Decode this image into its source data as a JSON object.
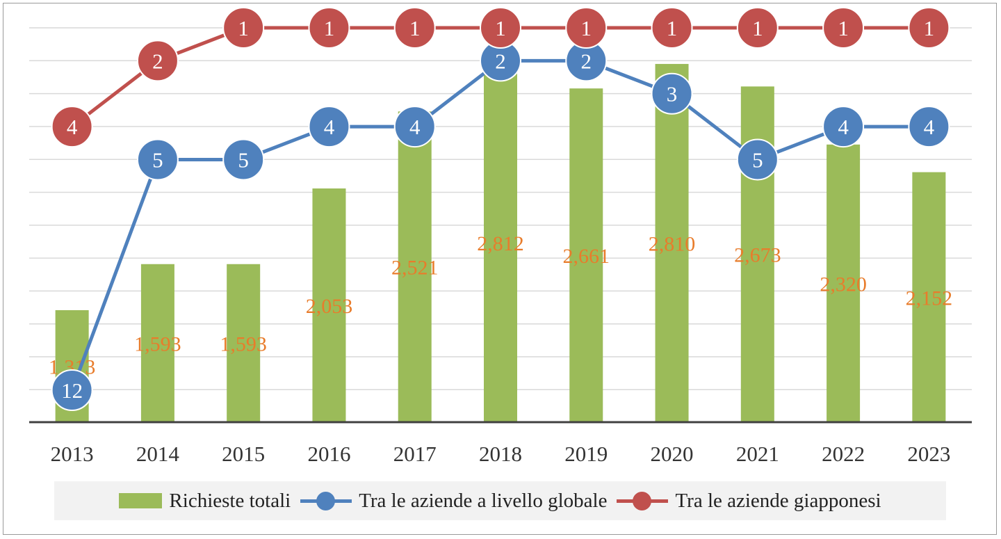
{
  "chart_data": {
    "type": "bar+line",
    "categories": [
      "2013",
      "2014",
      "2015",
      "2016",
      "2017",
      "2018",
      "2019",
      "2020",
      "2021",
      "2022",
      "2023"
    ],
    "series": [
      {
        "name": "Richieste totali",
        "type": "bar",
        "values": [
          1313,
          1593,
          1593,
          2053,
          2521,
          2812,
          2661,
          2810,
          2673,
          2320,
          2152
        ],
        "value_labels": [
          "1,313",
          "1,593",
          "1,593",
          "2,053",
          "2,521",
          "2,812",
          "2,661",
          "2,810",
          "2,673",
          "2,320",
          "2,152"
        ],
        "color": "#9bbb59",
        "label_color": "#e87c2b"
      },
      {
        "name": "Tra le aziende a livello globale",
        "type": "line-rank",
        "values": [
          12,
          5,
          5,
          4,
          4,
          2,
          2,
          3,
          5,
          4,
          4
        ],
        "color": "#4f81bd"
      },
      {
        "name": "Tra le aziende giapponesi",
        "type": "line-rank",
        "values": [
          4,
          2,
          1,
          1,
          1,
          1,
          1,
          1,
          1,
          1,
          1
        ],
        "color": "#c0504d"
      }
    ],
    "xlabel": "",
    "ylabel": "",
    "bar_ylim": [
      1000,
      3000
    ],
    "rank_ylim": [
      1,
      12
    ],
    "grid": true,
    "legend_position": "bottom"
  }
}
